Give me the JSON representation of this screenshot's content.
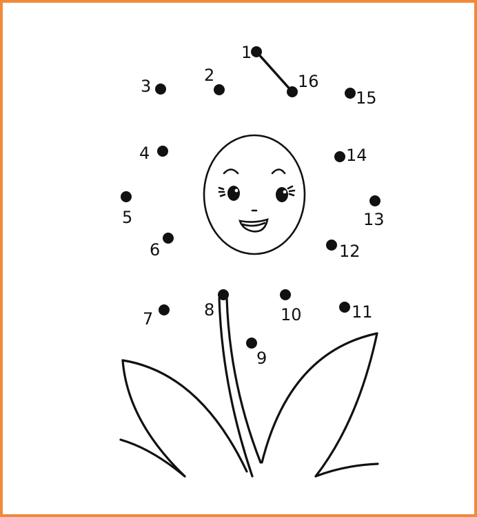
{
  "colors": {
    "border": "#f08a3a",
    "ink": "#111111",
    "paper": "#ffffff"
  },
  "connected": [
    [
      "1",
      "16"
    ]
  ],
  "dots": [
    {
      "label": "1"
    },
    {
      "label": "2"
    },
    {
      "label": "3"
    },
    {
      "label": "4"
    },
    {
      "label": "5"
    },
    {
      "label": "6"
    },
    {
      "label": "7"
    },
    {
      "label": "8"
    },
    {
      "label": "9"
    },
    {
      "label": "10"
    },
    {
      "label": "11"
    },
    {
      "label": "12"
    },
    {
      "label": "13"
    },
    {
      "label": "14"
    },
    {
      "label": "15"
    },
    {
      "label": "16"
    }
  ]
}
